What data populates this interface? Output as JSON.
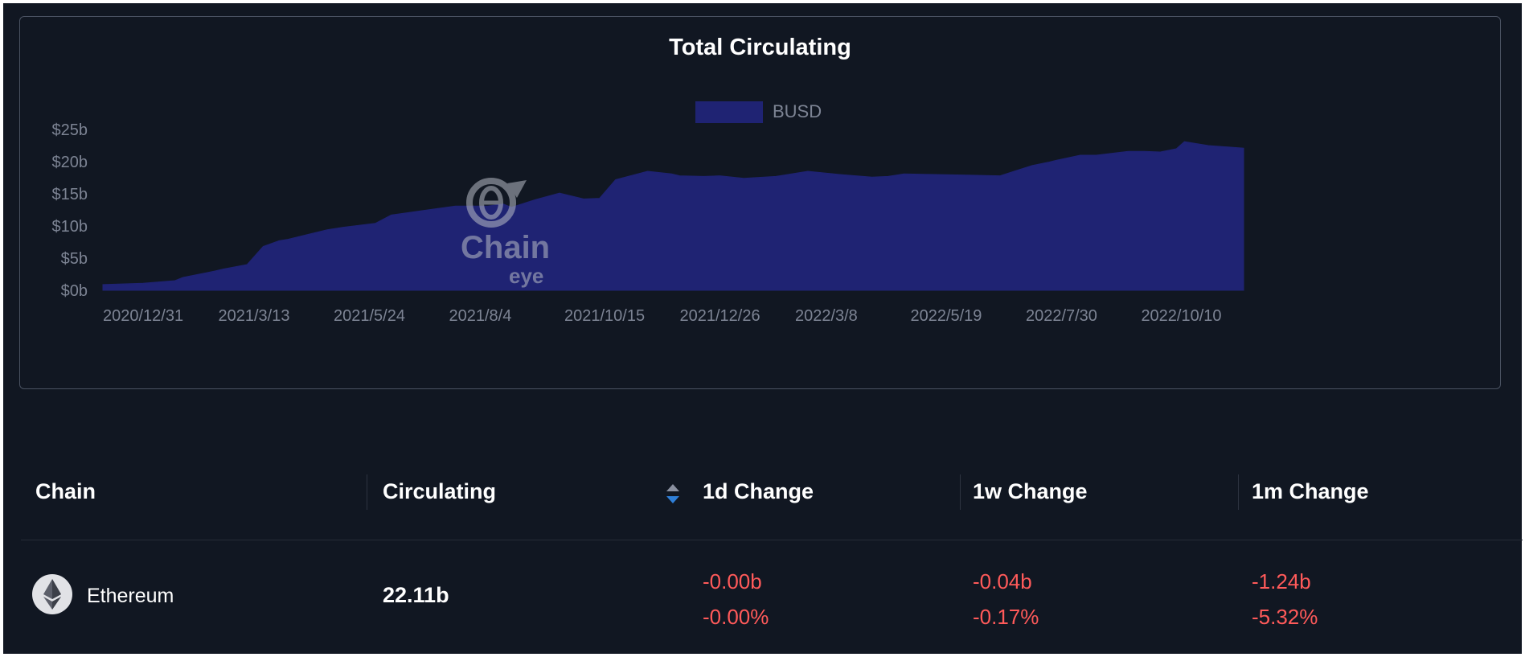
{
  "chart_data": {
    "type": "area",
    "title": "Total Circulating",
    "legend": {
      "entries": [
        "BUSD"
      ],
      "placement": "top-center"
    },
    "y_tick_labels": [
      "$0b",
      "$5b",
      "$10b",
      "$15b",
      "$20b",
      "$25b"
    ],
    "y_tick_values": [
      0,
      5,
      10,
      15,
      20,
      25
    ],
    "ylim": [
      0,
      25
    ],
    "x_tick_labels": [
      "2020/12/31",
      "2021/3/13",
      "2021/5/24",
      "2021/8/4",
      "2021/10/15",
      "2021/12/26",
      "2022/3/8",
      "2022/5/19",
      "2022/7/30",
      "2022/10/10"
    ],
    "x_tick_values": [
      0,
      72,
      144,
      216,
      288,
      360,
      432,
      504,
      576,
      648
    ],
    "xlim": [
      0,
      712
    ],
    "grid": false,
    "series": [
      {
        "name": "BUSD",
        "color": "#1f2373",
        "x": [
          0,
          25,
          45,
          50,
          70,
          75,
          90,
          100,
          110,
          115,
          140,
          150,
          170,
          180,
          200,
          220,
          240,
          250,
          255,
          270,
          285,
          300,
          310,
          320,
          340,
          355,
          360,
          375,
          385,
          400,
          420,
          440,
          460,
          480,
          490,
          500,
          520,
          540,
          560,
          580,
          590,
          595,
          610,
          620,
          640,
          650,
          660,
          670,
          675,
          690,
          712
        ],
        "values": [
          0.9,
          1.1,
          1.5,
          2.0,
          3.0,
          3.3,
          4.0,
          6.8,
          7.7,
          7.9,
          9.4,
          9.8,
          10.4,
          11.7,
          12.4,
          13.1,
          13.1,
          13.4,
          12.9,
          14.1,
          15.1,
          14.2,
          14.3,
          17.2,
          18.5,
          18.1,
          17.8,
          17.7,
          17.8,
          17.4,
          17.7,
          18.5,
          18.0,
          17.6,
          17.7,
          18.1,
          18.0,
          17.9,
          17.8,
          19.4,
          19.9,
          20.2,
          21.0,
          21.0,
          21.6,
          21.6,
          21.5,
          22.0,
          23.1,
          22.5,
          22.1
        ]
      }
    ]
  },
  "watermark": {
    "text": "Chain",
    "subtext": "eye"
  },
  "table": {
    "headers": {
      "chain": "Chain",
      "circulating": "Circulating",
      "d1": "1d Change",
      "w1": "1w Change",
      "m1": "1m Change"
    },
    "rows": [
      {
        "chain": "Ethereum",
        "icon": "ethereum-icon",
        "circulating": "22.11b",
        "d1_abs": "-0.00b",
        "d1_pct": "-0.00%",
        "w1_abs": "-0.04b",
        "w1_pct": "-0.17%",
        "m1_abs": "-1.24b",
        "m1_pct": "-5.32%"
      }
    ]
  },
  "colors": {
    "background": "#111722",
    "area": "#1f2373",
    "negative": "#ff5a5a",
    "sort_up": "#8a90a0",
    "sort_down": "#2f7fd8"
  }
}
